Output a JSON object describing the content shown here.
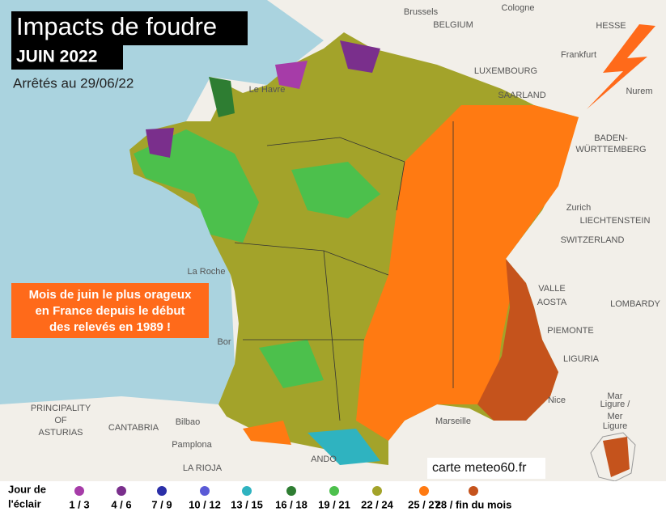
{
  "header": {
    "title": "Impacts de foudre",
    "subtitle": "JUIN 2022",
    "date": "Arrêtés au 29/06/22"
  },
  "callout": {
    "lines": [
      "Mois de juin le plus orageux",
      "en France depuis le début",
      "des relevés en 1989 !"
    ]
  },
  "credit": "carte meteo60.fr",
  "legend": {
    "title_lines": [
      "Jour de",
      "l'éclair"
    ],
    "items": [
      {
        "label": "1 / 3",
        "color": "#a63ca8"
      },
      {
        "label": "4 / 6",
        "color": "#7a2f8c"
      },
      {
        "label": "7 / 9",
        "color": "#2b2fa8"
      },
      {
        "label": "10 / 12",
        "color": "#5a5ad6"
      },
      {
        "label": "13 / 15",
        "color": "#2fb3c0"
      },
      {
        "label": "16 / 18",
        "color": "#2e7d32"
      },
      {
        "label": "19 / 21",
        "color": "#4cc04c"
      },
      {
        "label": "22 / 24",
        "color": "#a3a32a"
      },
      {
        "label": "25 / 27",
        "color": "#ff7a12"
      },
      {
        "label": "28 / fin du mois",
        "color": "#c5531c"
      }
    ]
  },
  "place_labels": [
    "Brussels",
    "BELGIUM",
    "Cologne",
    "HESSE",
    "Frankfurt",
    "LUXEMBOURG",
    "Nurem",
    "Le Havre",
    "SAARLAND",
    "BADEN-",
    "WÜRTTEMBERG",
    "Zurich",
    "LIECHTENSTEIN",
    "SWITZERLAND",
    "La Roche",
    "VALLE",
    "AOSTA",
    "LOMBARDY",
    "PIEMONTE",
    "LIGURIA",
    "Bor",
    "Nice",
    "Mar",
    "Ligure /",
    "Mer",
    "Ligure",
    "PRINCIPALITY",
    "OF",
    "ASTURIAS",
    "CANTABRIA",
    "Bilbao",
    "Marseille",
    "Pamplona",
    "LA RIOJA",
    "ANDO"
  ]
}
